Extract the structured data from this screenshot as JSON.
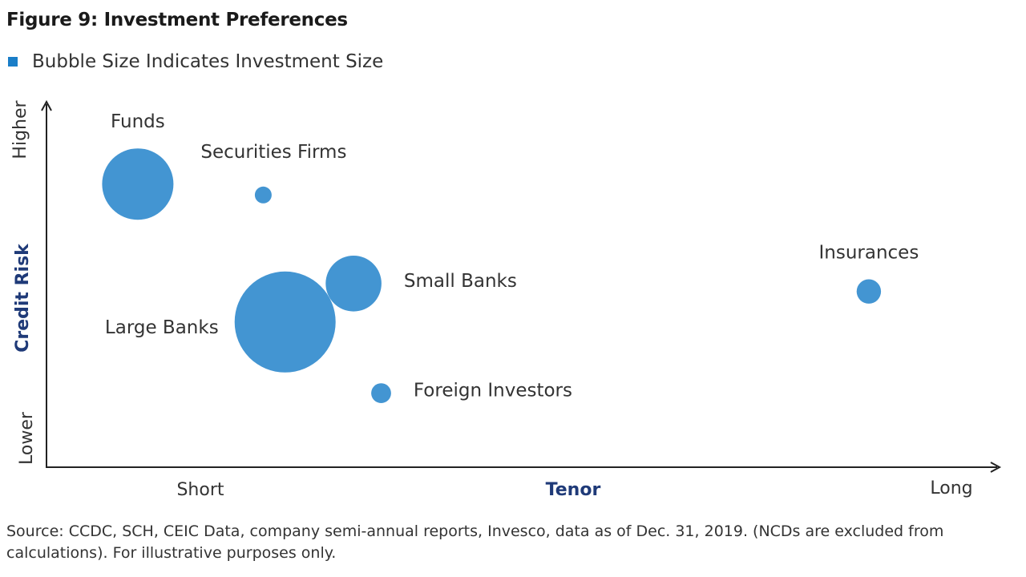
{
  "chart_data": {
    "type": "scatter",
    "title": "Figure 9: Investment Preferences",
    "legend": {
      "label": "Bubble Size Indicates Investment Size",
      "color": "#1a7ec8",
      "placement": "top-left"
    },
    "xlabel": "Tenor",
    "ylabel": "Credit Risk",
    "x_ticks": {
      "low": "Short",
      "high": "Long"
    },
    "y_ticks": {
      "low": "Lower",
      "high": "Higher"
    },
    "xlim": [
      0,
      100
    ],
    "ylim": [
      0,
      100
    ],
    "grid": false,
    "axis_label_color": "#1f3a78",
    "bubble_color": "#1a7ec8",
    "bubble_opacity": 0.82,
    "points": [
      {
        "name": "Funds",
        "x": 9.6,
        "y": 78,
        "size": 18,
        "label_pos": "top"
      },
      {
        "name": "Securities Firms",
        "x": 22.8,
        "y": 75,
        "size": 1,
        "label_pos": "top-right"
      },
      {
        "name": "Small Banks",
        "x": 32.3,
        "y": 50.6,
        "size": 11,
        "label_pos": "right"
      },
      {
        "name": "Large Banks",
        "x": 25.1,
        "y": 40,
        "size": 36,
        "label_pos": "left"
      },
      {
        "name": "Foreign Investors",
        "x": 35.2,
        "y": 20.4,
        "size": 1.4,
        "label_pos": "right"
      },
      {
        "name": "Insurances",
        "x": 86.5,
        "y": 48.4,
        "size": 2.1,
        "label_pos": "top"
      }
    ]
  },
  "source": "Source: CCDC, SCH, CEIC Data, company semi-annual reports, Invesco, data as of Dec. 31, 2019. (NCDs are excluded from calculations). For illustrative purposes only."
}
